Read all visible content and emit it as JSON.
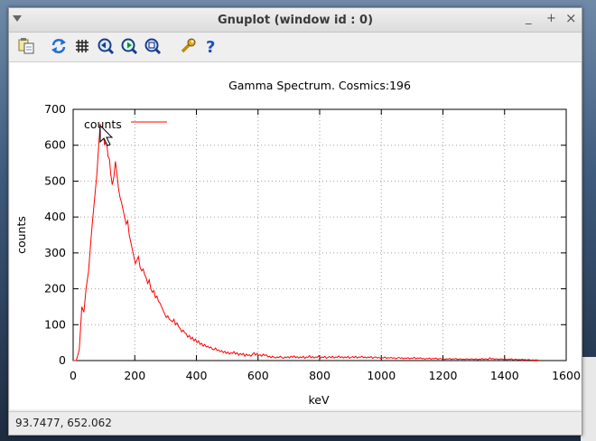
{
  "window": {
    "title": "Gnuplot (window id : 0)",
    "minimize_glyph": "_",
    "maximize_glyph": "+",
    "close_glyph": "×"
  },
  "toolbar": {
    "icons": [
      "copy-to-clipboard-icon",
      "replot-icon",
      "grid-icon",
      "previous-zoom-icon",
      "next-zoom-icon",
      "autoscale-icon",
      "options-icon",
      "help-icon"
    ],
    "help_glyph": "?"
  },
  "status": {
    "text": "93.7477,  652.062"
  },
  "chart_data": {
    "type": "line",
    "title": "Gamma Spectrum.  Cosmics:196",
    "xlabel": "keV",
    "ylabel": "counts",
    "xlim": [
      0,
      1600
    ],
    "ylim": [
      0,
      700
    ],
    "xticks": [
      0,
      200,
      400,
      600,
      800,
      1000,
      1200,
      1400,
      1600
    ],
    "yticks": [
      0,
      100,
      200,
      300,
      400,
      500,
      600,
      700
    ],
    "grid": true,
    "legend_position": "top-left",
    "series": [
      {
        "name": "counts",
        "color": "#ff0000",
        "points": [
          [
            0,
            0
          ],
          [
            10,
            0
          ],
          [
            20,
            30
          ],
          [
            28,
            150
          ],
          [
            35,
            135
          ],
          [
            42,
            200
          ],
          [
            50,
            250
          ],
          [
            57,
            330
          ],
          [
            63,
            390
          ],
          [
            70,
            455
          ],
          [
            77,
            520
          ],
          [
            83,
            600
          ],
          [
            88,
            660
          ],
          [
            92,
            620
          ],
          [
            97,
            640
          ],
          [
            102,
            600
          ],
          [
            108,
            615
          ],
          [
            113,
            570
          ],
          [
            118,
            560
          ],
          [
            122,
            520
          ],
          [
            127,
            490
          ],
          [
            132,
            510
          ],
          [
            137,
            555
          ],
          [
            142,
            520
          ],
          [
            147,
            480
          ],
          [
            152,
            455
          ],
          [
            157,
            440
          ],
          [
            162,
            420
          ],
          [
            167,
            400
          ],
          [
            172,
            380
          ],
          [
            177,
            390
          ],
          [
            182,
            350
          ],
          [
            187,
            330
          ],
          [
            192,
            310
          ],
          [
            197,
            290
          ],
          [
            202,
            270
          ],
          [
            207,
            280
          ],
          [
            212,
            290
          ],
          [
            217,
            260
          ],
          [
            222,
            250
          ],
          [
            227,
            255
          ],
          [
            232,
            240
          ],
          [
            237,
            230
          ],
          [
            242,
            215
          ],
          [
            247,
            225
          ],
          [
            252,
            200
          ],
          [
            257,
            190
          ],
          [
            262,
            195
          ],
          [
            267,
            175
          ],
          [
            272,
            180
          ],
          [
            277,
            165
          ],
          [
            282,
            160
          ],
          [
            287,
            150
          ],
          [
            292,
            140
          ],
          [
            297,
            130
          ],
          [
            302,
            120
          ],
          [
            307,
            125
          ],
          [
            312,
            115
          ],
          [
            317,
            112
          ],
          [
            322,
            108
          ],
          [
            327,
            115
          ],
          [
            332,
            100
          ],
          [
            337,
            105
          ],
          [
            342,
            95
          ],
          [
            347,
            90
          ],
          [
            352,
            80
          ],
          [
            357,
            85
          ],
          [
            362,
            78
          ],
          [
            367,
            75
          ],
          [
            372,
            65
          ],
          [
            377,
            70
          ],
          [
            382,
            60
          ],
          [
            387,
            65
          ],
          [
            392,
            55
          ],
          [
            397,
            60
          ],
          [
            402,
            50
          ],
          [
            407,
            55
          ],
          [
            412,
            45
          ],
          [
            417,
            48
          ],
          [
            422,
            40
          ],
          [
            427,
            45
          ],
          [
            432,
            38
          ],
          [
            437,
            40
          ],
          [
            442,
            35
          ],
          [
            447,
            38
          ],
          [
            452,
            32
          ],
          [
            457,
            30
          ],
          [
            462,
            35
          ],
          [
            467,
            28
          ],
          [
            472,
            30
          ],
          [
            477,
            25
          ],
          [
            482,
            28
          ],
          [
            487,
            22
          ],
          [
            492,
            26
          ],
          [
            497,
            20
          ],
          [
            502,
            24
          ],
          [
            507,
            18
          ],
          [
            512,
            22
          ],
          [
            517,
            20
          ],
          [
            522,
            25
          ],
          [
            527,
            18
          ],
          [
            532,
            22
          ],
          [
            537,
            15
          ],
          [
            542,
            20
          ],
          [
            547,
            16
          ],
          [
            552,
            20
          ],
          [
            557,
            12
          ],
          [
            562,
            18
          ],
          [
            567,
            14
          ],
          [
            572,
            16
          ],
          [
            577,
            12
          ],
          [
            582,
            18
          ],
          [
            587,
            22
          ],
          [
            592,
            15
          ],
          [
            597,
            20
          ],
          [
            602,
            14
          ],
          [
            607,
            16
          ],
          [
            612,
            12
          ],
          [
            617,
            18
          ],
          [
            622,
            14
          ],
          [
            627,
            16
          ],
          [
            632,
            10
          ],
          [
            637,
            12
          ],
          [
            642,
            8
          ],
          [
            647,
            12
          ],
          [
            652,
            9
          ],
          [
            657,
            7
          ],
          [
            662,
            10
          ],
          [
            667,
            8
          ],
          [
            672,
            12
          ],
          [
            677,
            9
          ],
          [
            682,
            6
          ],
          [
            687,
            10
          ],
          [
            692,
            8
          ],
          [
            697,
            11
          ],
          [
            702,
            7
          ],
          [
            707,
            12
          ],
          [
            712,
            9
          ],
          [
            717,
            13
          ],
          [
            722,
            8
          ],
          [
            727,
            11
          ],
          [
            732,
            7
          ],
          [
            737,
            10
          ],
          [
            742,
            8
          ],
          [
            747,
            12
          ],
          [
            752,
            6
          ],
          [
            757,
            10
          ],
          [
            762,
            9
          ],
          [
            767,
            14
          ],
          [
            772,
            8
          ],
          [
            777,
            11
          ],
          [
            782,
            7
          ],
          [
            787,
            10
          ],
          [
            792,
            9
          ],
          [
            797,
            13
          ],
          [
            802,
            7
          ],
          [
            807,
            10
          ],
          [
            812,
            8
          ],
          [
            817,
            12
          ],
          [
            822,
            6
          ],
          [
            827,
            9
          ],
          [
            832,
            11
          ],
          [
            837,
            8
          ],
          [
            842,
            12
          ],
          [
            847,
            7
          ],
          [
            852,
            10
          ],
          [
            857,
            9
          ],
          [
            862,
            13
          ],
          [
            867,
            8
          ],
          [
            872,
            11
          ],
          [
            877,
            7
          ],
          [
            882,
            10
          ],
          [
            887,
            8
          ],
          [
            892,
            12
          ],
          [
            897,
            6
          ],
          [
            902,
            9
          ],
          [
            907,
            11
          ],
          [
            912,
            8
          ],
          [
            917,
            12
          ],
          [
            922,
            7
          ],
          [
            927,
            10
          ],
          [
            932,
            9
          ],
          [
            937,
            12
          ],
          [
            942,
            8
          ],
          [
            947,
            10
          ],
          [
            952,
            7
          ],
          [
            957,
            10
          ],
          [
            962,
            8
          ],
          [
            967,
            11
          ],
          [
            972,
            6
          ],
          [
            977,
            9
          ],
          [
            982,
            10
          ],
          [
            987,
            7
          ],
          [
            992,
            9
          ],
          [
            997,
            6
          ],
          [
            1002,
            8
          ],
          [
            1007,
            7
          ],
          [
            1012,
            10
          ],
          [
            1017,
            6
          ],
          [
            1022,
            8
          ],
          [
            1027,
            7
          ],
          [
            1032,
            9
          ],
          [
            1037,
            6
          ],
          [
            1042,
            8
          ],
          [
            1047,
            5
          ],
          [
            1052,
            7
          ],
          [
            1057,
            9
          ],
          [
            1062,
            6
          ],
          [
            1067,
            8
          ],
          [
            1072,
            5
          ],
          [
            1077,
            7
          ],
          [
            1082,
            6
          ],
          [
            1087,
            8
          ],
          [
            1092,
            5
          ],
          [
            1097,
            7
          ],
          [
            1102,
            6
          ],
          [
            1107,
            9
          ],
          [
            1112,
            5
          ],
          [
            1117,
            7
          ],
          [
            1122,
            6
          ],
          [
            1127,
            8
          ],
          [
            1132,
            5
          ],
          [
            1137,
            6
          ],
          [
            1142,
            4
          ],
          [
            1147,
            6
          ],
          [
            1152,
            5
          ],
          [
            1157,
            7
          ],
          [
            1162,
            4
          ],
          [
            1167,
            6
          ],
          [
            1172,
            5
          ],
          [
            1177,
            7
          ],
          [
            1182,
            4
          ],
          [
            1187,
            5
          ],
          [
            1192,
            6
          ],
          [
            1197,
            4
          ],
          [
            1202,
            5
          ],
          [
            1207,
            3
          ],
          [
            1212,
            5
          ],
          [
            1217,
            4
          ],
          [
            1222,
            6
          ],
          [
            1227,
            3
          ],
          [
            1232,
            5
          ],
          [
            1237,
            4
          ],
          [
            1242,
            6
          ],
          [
            1247,
            3
          ],
          [
            1252,
            4
          ],
          [
            1257,
            5
          ],
          [
            1262,
            3
          ],
          [
            1267,
            4
          ],
          [
            1272,
            3
          ],
          [
            1277,
            5
          ],
          [
            1282,
            4
          ],
          [
            1287,
            3
          ],
          [
            1292,
            5
          ],
          [
            1297,
            4
          ],
          [
            1302,
            3
          ],
          [
            1307,
            5
          ],
          [
            1312,
            2
          ],
          [
            1317,
            4
          ],
          [
            1322,
            3
          ],
          [
            1327,
            6
          ],
          [
            1332,
            3
          ],
          [
            1337,
            5
          ],
          [
            1342,
            4
          ],
          [
            1347,
            3
          ],
          [
            1352,
            8
          ],
          [
            1357,
            4
          ],
          [
            1362,
            6
          ],
          [
            1367,
            3
          ],
          [
            1372,
            5
          ],
          [
            1377,
            4
          ],
          [
            1382,
            3
          ],
          [
            1387,
            5
          ],
          [
            1392,
            4
          ],
          [
            1397,
            3
          ],
          [
            1402,
            5
          ],
          [
            1407,
            2
          ],
          [
            1412,
            4
          ],
          [
            1417,
            3
          ],
          [
            1422,
            5
          ],
          [
            1427,
            2
          ],
          [
            1432,
            3
          ],
          [
            1437,
            4
          ],
          [
            1442,
            2
          ],
          [
            1447,
            3
          ],
          [
            1452,
            2
          ],
          [
            1457,
            4
          ],
          [
            1462,
            2
          ],
          [
            1467,
            3
          ],
          [
            1472,
            1
          ],
          [
            1477,
            3
          ],
          [
            1482,
            2
          ],
          [
            1487,
            1
          ],
          [
            1492,
            2
          ],
          [
            1497,
            1
          ],
          [
            1502,
            2
          ],
          [
            1507,
            1
          ],
          [
            1512,
            1
          ]
        ]
      }
    ]
  }
}
